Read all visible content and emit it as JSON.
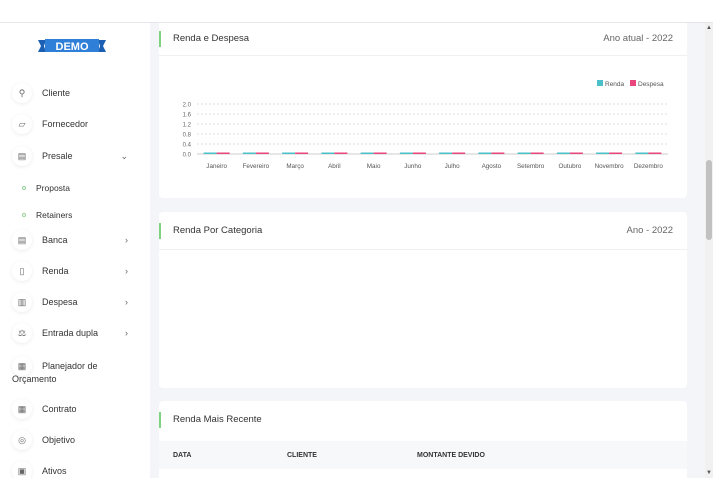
{
  "logo": "DEMO",
  "sidebar": {
    "items": [
      {
        "label": "Cliente",
        "icon": "user-plus-icon"
      },
      {
        "label": "Fornecedor",
        "icon": "sticky-note-icon"
      },
      {
        "label": "Presale",
        "icon": "briefcase-icon",
        "expanded": true
      },
      {
        "label": "Banca",
        "icon": "bank-icon"
      },
      {
        "label": "Renda",
        "icon": "file-icon"
      },
      {
        "label": "Despesa",
        "icon": "receipt-icon"
      },
      {
        "label": "Entrada dupla",
        "icon": "scale-icon"
      },
      {
        "label": "Planejador de",
        "label2": "Orçamento",
        "icon": "budget-icon"
      },
      {
        "label": "Contrato",
        "icon": "contract-icon"
      },
      {
        "label": "Objetivo",
        "icon": "target-icon"
      },
      {
        "label": "Ativos",
        "icon": "asset-icon"
      }
    ],
    "subitems": [
      "Proposta",
      "Retainers"
    ]
  },
  "cards": {
    "income_expense": {
      "title": "Renda e Despesa",
      "right": "Ano atual - 2022"
    },
    "by_category": {
      "title": "Renda Por Categoria",
      "right": "Ano - 2022"
    },
    "recent": {
      "title": "Renda Mais Recente",
      "columns": [
        "DATA",
        "CLIENTE",
        "MONTANTE DEVIDO"
      ]
    }
  },
  "chart_data": {
    "type": "bar",
    "categories": [
      "Janeiro",
      "Fevereiro",
      "Março",
      "Abril",
      "Maio",
      "Junho",
      "Julho",
      "Agosto",
      "Setembro",
      "Outubro",
      "Novembro",
      "Dezembro"
    ],
    "series": [
      {
        "name": "Renda",
        "color": "#4bc0c8",
        "values": [
          0,
          0,
          0,
          0,
          0,
          0,
          0,
          0,
          0,
          0,
          0,
          0
        ]
      },
      {
        "name": "Despesa",
        "color": "#e8467c",
        "values": [
          0,
          0,
          0,
          0,
          0,
          0,
          0,
          0,
          0,
          0,
          0,
          0
        ]
      }
    ],
    "yticks": [
      "0.0",
      "0.4",
      "0.8",
      "1.2",
      "1.6",
      "2.0"
    ],
    "ylim": [
      0,
      2.0
    ],
    "grid": true,
    "legend": "top-right"
  }
}
